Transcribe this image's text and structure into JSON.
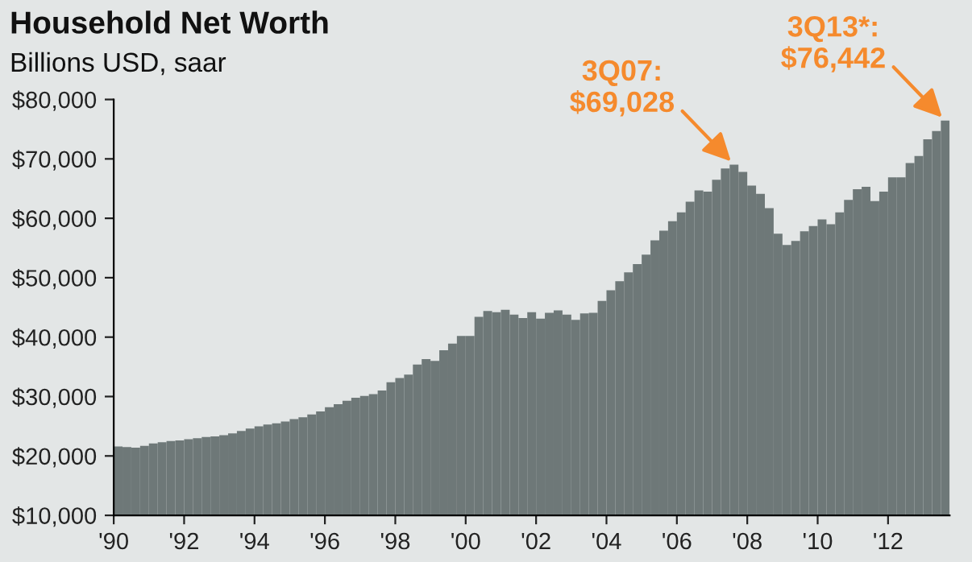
{
  "chart_data": {
    "type": "bar",
    "title": "Household Net Worth",
    "subtitle": "Billions USD, saar",
    "x": [
      "1990-01",
      "1990-04",
      "1990-07",
      "1990-10",
      "1991-01",
      "1991-04",
      "1991-07",
      "1991-10",
      "1992-01",
      "1992-04",
      "1992-07",
      "1992-10",
      "1993-01",
      "1993-04",
      "1993-07",
      "1993-10",
      "1994-01",
      "1994-04",
      "1994-07",
      "1994-10",
      "1995-01",
      "1995-04",
      "1995-07",
      "1995-10",
      "1996-01",
      "1996-04",
      "1996-07",
      "1996-10",
      "1997-01",
      "1997-04",
      "1997-07",
      "1997-10",
      "1998-01",
      "1998-04",
      "1998-07",
      "1998-10",
      "1999-01",
      "1999-04",
      "1999-07",
      "1999-10",
      "2000-01",
      "2000-04",
      "2000-07",
      "2000-10",
      "2001-01",
      "2001-04",
      "2001-07",
      "2001-10",
      "2002-01",
      "2002-04",
      "2002-07",
      "2002-10",
      "2003-01",
      "2003-04",
      "2003-07",
      "2003-10",
      "2004-01",
      "2004-04",
      "2004-07",
      "2004-10",
      "2005-01",
      "2005-04",
      "2005-07",
      "2005-10",
      "2006-01",
      "2006-04",
      "2006-07",
      "2006-10",
      "2007-01",
      "2007-04",
      "2007-07",
      "2007-10",
      "2008-01",
      "2008-04",
      "2008-07",
      "2008-10",
      "2009-01",
      "2009-04",
      "2009-07",
      "2009-10",
      "2010-01",
      "2010-04",
      "2010-07",
      "2010-10",
      "2011-01",
      "2011-04",
      "2011-07",
      "2011-10",
      "2012-01",
      "2012-04",
      "2012-07",
      "2012-10",
      "2013-01",
      "2013-04",
      "2013-07"
    ],
    "values": [
      21600,
      21500,
      21400,
      21700,
      22100,
      22300,
      22500,
      22600,
      22800,
      23000,
      23200,
      23300,
      23500,
      23800,
      24200,
      24600,
      25000,
      25300,
      25500,
      25800,
      26200,
      26500,
      27000,
      27500,
      28200,
      28700,
      29300,
      29800,
      30100,
      30400,
      31000,
      32400,
      33100,
      33700,
      35400,
      36300,
      36000,
      37800,
      38900,
      40200,
      40200,
      43400,
      44400,
      44200,
      44600,
      43800,
      43200,
      44200,
      43100,
      44100,
      44500,
      43800,
      42900,
      44000,
      44100,
      46100,
      47900,
      49400,
      50900,
      52300,
      53900,
      56300,
      57900,
      59500,
      61000,
      62800,
      64700,
      64500,
      66500,
      68400,
      69028,
      67800,
      65500,
      64100,
      61700,
      57400,
      55500,
      56200,
      57800,
      58700,
      59800,
      59000,
      61000,
      63100,
      64900,
      65300,
      62900,
      64500,
      66900,
      66900,
      69300,
      70500,
      73300,
      74700,
      76442
    ],
    "color": "#6e7878",
    "xlim": [
      "1990-01",
      "2013-10"
    ],
    "xticks": [
      {
        "value": "1990-01",
        "label": "'90"
      },
      {
        "value": "1992-01",
        "label": "'92"
      },
      {
        "value": "1994-01",
        "label": "'94"
      },
      {
        "value": "1996-01",
        "label": "'96"
      },
      {
        "value": "1998-01",
        "label": "'98"
      },
      {
        "value": "2000-01",
        "label": "'00"
      },
      {
        "value": "2002-01",
        "label": "'02"
      },
      {
        "value": "2004-01",
        "label": "'04"
      },
      {
        "value": "2006-01",
        "label": "'06"
      },
      {
        "value": "2008-01",
        "label": "'08"
      },
      {
        "value": "2010-01",
        "label": "'10"
      },
      {
        "value": "2012-01",
        "label": "'12"
      }
    ],
    "ylim": [
      10000,
      80000
    ],
    "yticks": [
      {
        "value": 10000,
        "label": "$10,000"
      },
      {
        "value": 20000,
        "label": "$20,000"
      },
      {
        "value": 30000,
        "label": "$30,000"
      },
      {
        "value": 40000,
        "label": "$40,000"
      },
      {
        "value": 50000,
        "label": "$50,000"
      },
      {
        "value": 60000,
        "label": "$60,000"
      },
      {
        "value": 70000,
        "label": "$70,000"
      },
      {
        "value": 80000,
        "label": "$80,000"
      }
    ],
    "grid": false,
    "annotations": [
      {
        "text": "3Q07:\n$69,028",
        "x": "2007-07",
        "y": 69028
      },
      {
        "text": "3Q13*:\n$76,442",
        "x": "2013-07",
        "y": 76442
      }
    ]
  }
}
